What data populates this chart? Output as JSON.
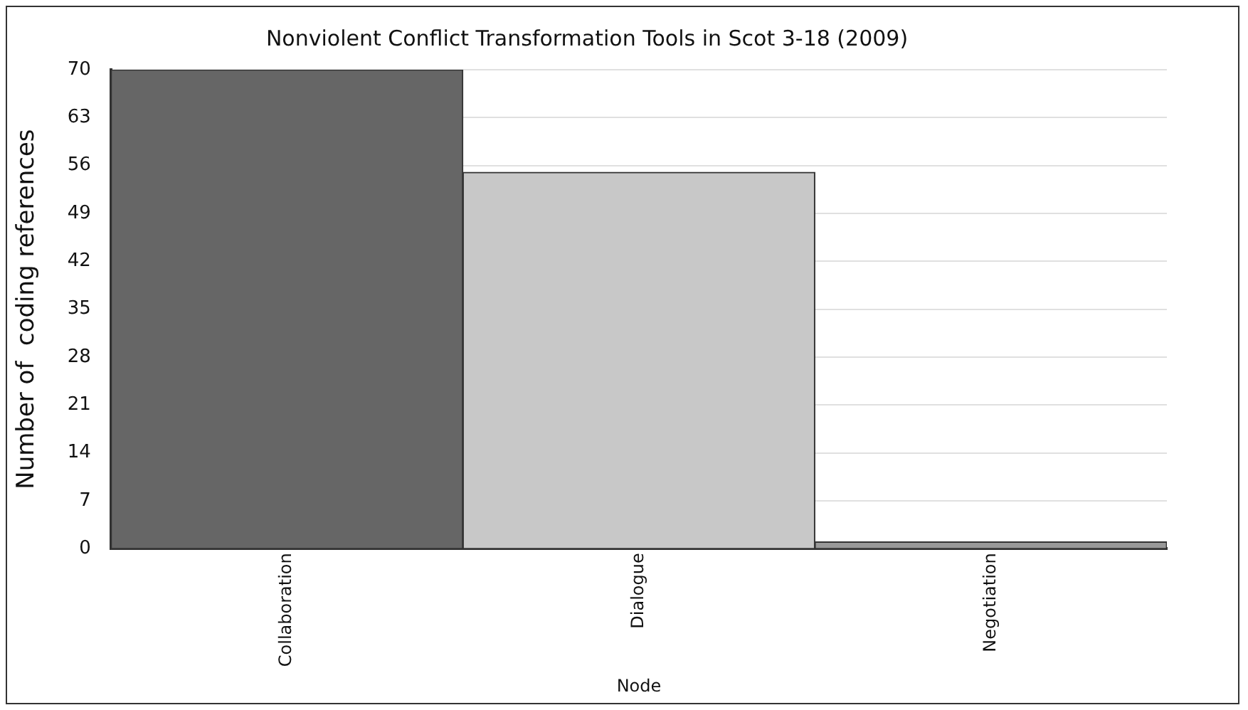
{
  "chart_data": {
    "type": "bar",
    "title": "Nonviolent Conflict Transformation Tools in Scot 3-18 (2009)",
    "xlabel": "Node",
    "ylabel": "Number of  coding references",
    "categories": [
      "Collaboration",
      "Dialogue",
      "Negotiation"
    ],
    "values": [
      70,
      55,
      1
    ],
    "colors": [
      "#666666",
      "#c8c8c8",
      "#999999"
    ],
    "ylim": [
      0,
      70
    ],
    "yticks": [
      0,
      7,
      14,
      21,
      28,
      35,
      42,
      49,
      56,
      63,
      70
    ],
    "grid": "y",
    "legend": false
  }
}
